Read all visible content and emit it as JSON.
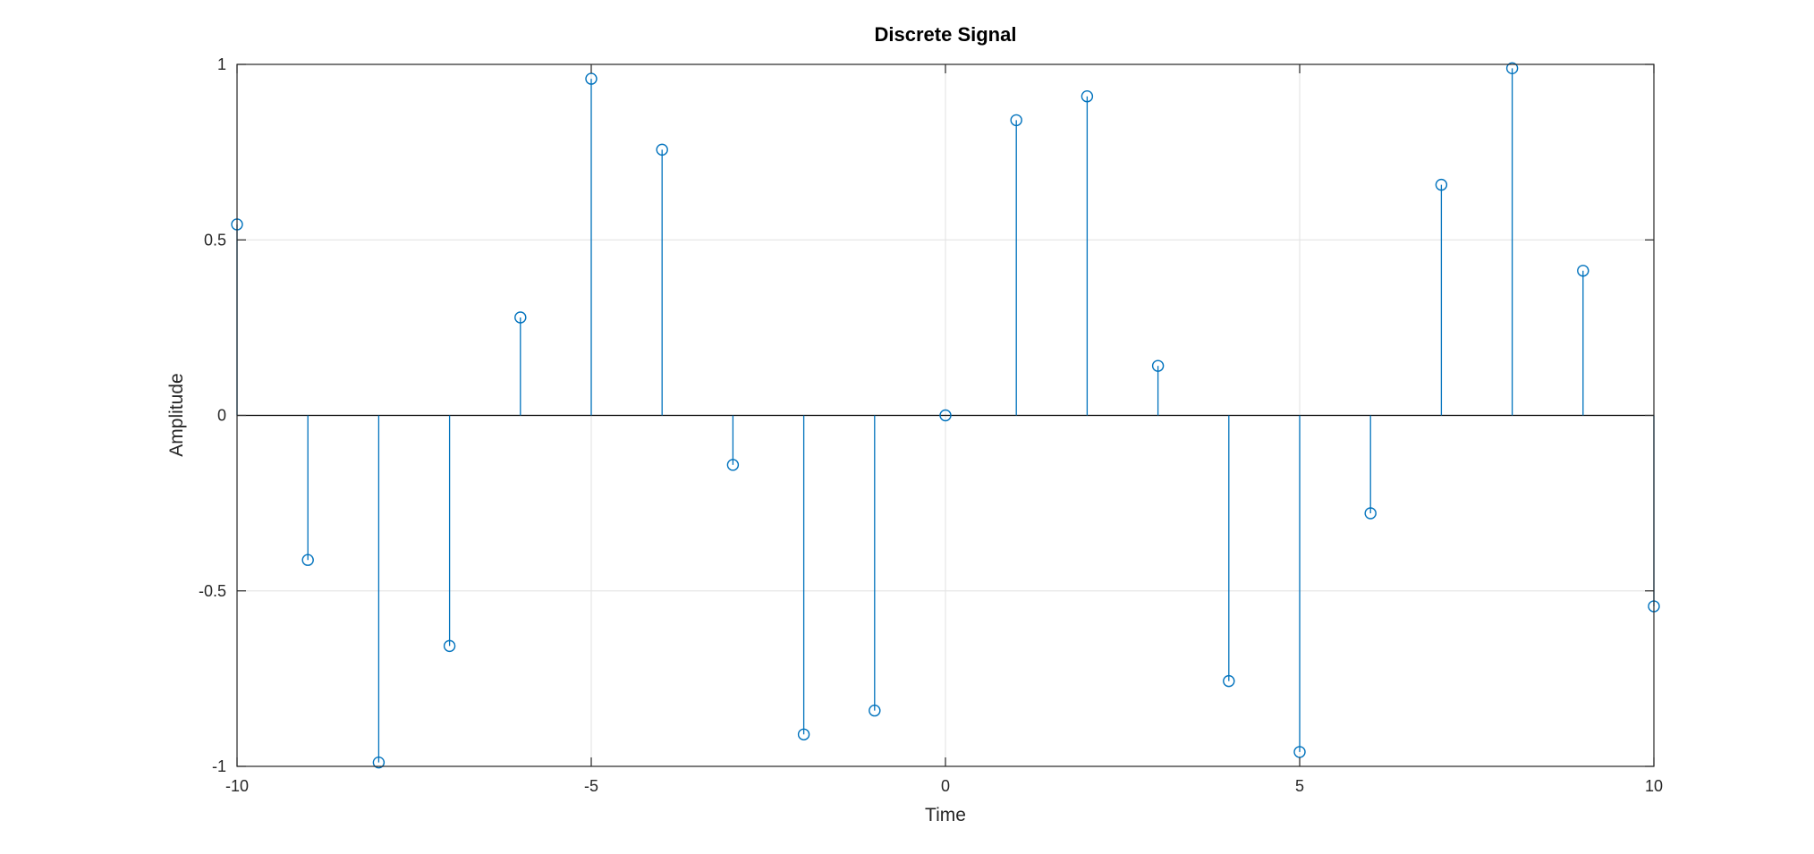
{
  "chart_data": {
    "type": "stem",
    "title": "Discrete Signal",
    "xlabel": "Time",
    "ylabel": "Amplitude",
    "xlim": [
      -10,
      10
    ],
    "ylim": [
      -1,
      1
    ],
    "xticks": [
      -10,
      -5,
      0,
      5,
      10
    ],
    "xtick_labels": [
      "-10",
      "-5",
      "0",
      "5",
      "10"
    ],
    "yticks": [
      -1,
      -0.5,
      0,
      0.5,
      1
    ],
    "ytick_labels": [
      "-1",
      "-0.5",
      "0",
      "0.5",
      "1"
    ],
    "grid": true,
    "marker": "circle",
    "color": "#0072BD",
    "x": [
      -10,
      -9,
      -8,
      -7,
      -6,
      -5,
      -4,
      -3,
      -2,
      -1,
      0,
      1,
      2,
      3,
      4,
      5,
      6,
      7,
      8,
      9,
      10
    ],
    "y": [
      0.544,
      -0.412,
      -0.989,
      -0.657,
      0.279,
      0.959,
      0.757,
      -0.141,
      -0.909,
      -0.841,
      0,
      0.841,
      0.909,
      0.141,
      -0.757,
      -0.959,
      -0.279,
      0.657,
      0.989,
      0.412,
      -0.544
    ]
  }
}
